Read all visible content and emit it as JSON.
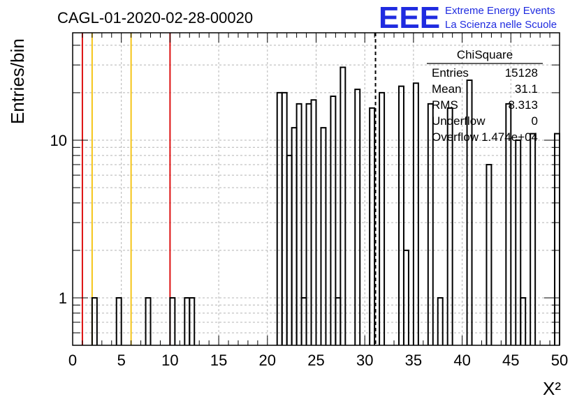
{
  "chart_data": {
    "type": "histogram",
    "title": "CAGL-01-2020-02-28-00020",
    "xlabel": "X²",
    "ylabel": "Entries/bin",
    "xlim": [
      0,
      50
    ],
    "ylim": [
      0.5,
      48
    ],
    "yscale": "log",
    "grid": true,
    "bin_width": 0.5,
    "x_ticks": [
      "0",
      "5",
      "10",
      "15",
      "20",
      "25",
      "30",
      "35",
      "40",
      "45",
      "50"
    ],
    "x_tick_values": [
      0,
      5,
      10,
      15,
      20,
      25,
      30,
      35,
      40,
      45,
      50
    ],
    "y_ticks": [
      "1",
      "10"
    ],
    "y_tick_values": [
      1,
      10
    ],
    "bins": [
      {
        "x": 2.0,
        "y": 1
      },
      {
        "x": 4.5,
        "y": 1
      },
      {
        "x": 7.5,
        "y": 1
      },
      {
        "x": 10.0,
        "y": 1
      },
      {
        "x": 11.5,
        "y": 1
      },
      {
        "x": 12.0,
        "y": 1
      },
      {
        "x": 21.0,
        "y": 20
      },
      {
        "x": 21.5,
        "y": 20
      },
      {
        "x": 22.0,
        "y": 8
      },
      {
        "x": 22.5,
        "y": 12
      },
      {
        "x": 23.0,
        "y": 17
      },
      {
        "x": 23.5,
        "y": 1
      },
      {
        "x": 24.0,
        "y": 17
      },
      {
        "x": 24.5,
        "y": 18
      },
      {
        "x": 25.5,
        "y": 12
      },
      {
        "x": 26.5,
        "y": 19
      },
      {
        "x": 27.0,
        "y": 1
      },
      {
        "x": 27.5,
        "y": 29
      },
      {
        "x": 29.0,
        "y": 21
      },
      {
        "x": 30.5,
        "y": 16
      },
      {
        "x": 31.5,
        "y": 20
      },
      {
        "x": 33.5,
        "y": 22
      },
      {
        "x": 34.0,
        "y": 2
      },
      {
        "x": 35.0,
        "y": 23
      },
      {
        "x": 36.5,
        "y": 17
      },
      {
        "x": 37.5,
        "y": 1
      },
      {
        "x": 38.5,
        "y": 16
      },
      {
        "x": 40.5,
        "y": 24
      },
      {
        "x": 42.5,
        "y": 7
      },
      {
        "x": 44.5,
        "y": 17
      },
      {
        "x": 45.5,
        "y": 10
      },
      {
        "x": 46.0,
        "y": 1
      },
      {
        "x": 47.0,
        "y": 11
      },
      {
        "x": 49.5,
        "y": 11
      }
    ],
    "vertical_lines": [
      {
        "x": 1,
        "color": "#dd1111",
        "style": "solid"
      },
      {
        "x": 2,
        "color": "#f5c518",
        "style": "solid"
      },
      {
        "x": 6,
        "color": "#f5c518",
        "style": "solid"
      },
      {
        "x": 10,
        "color": "#dd1111",
        "style": "solid"
      },
      {
        "x": 31.1,
        "color": "#000000",
        "style": "dashed"
      }
    ],
    "stats": {
      "name": "ChiSquare",
      "rows": [
        {
          "label": "Entries",
          "value": "15128"
        },
        {
          "label": "Mean",
          "value": "31.1"
        },
        {
          "label": "RMS",
          "value": "8.313"
        },
        {
          "label": "Underflow",
          "value": "0"
        },
        {
          "label": "Overflow",
          "value": "1.474e+04"
        }
      ]
    }
  },
  "logo": {
    "mark": "EEE",
    "line1": "Extreme Energy Events",
    "line2": "La Scienza nelle Scuole"
  }
}
